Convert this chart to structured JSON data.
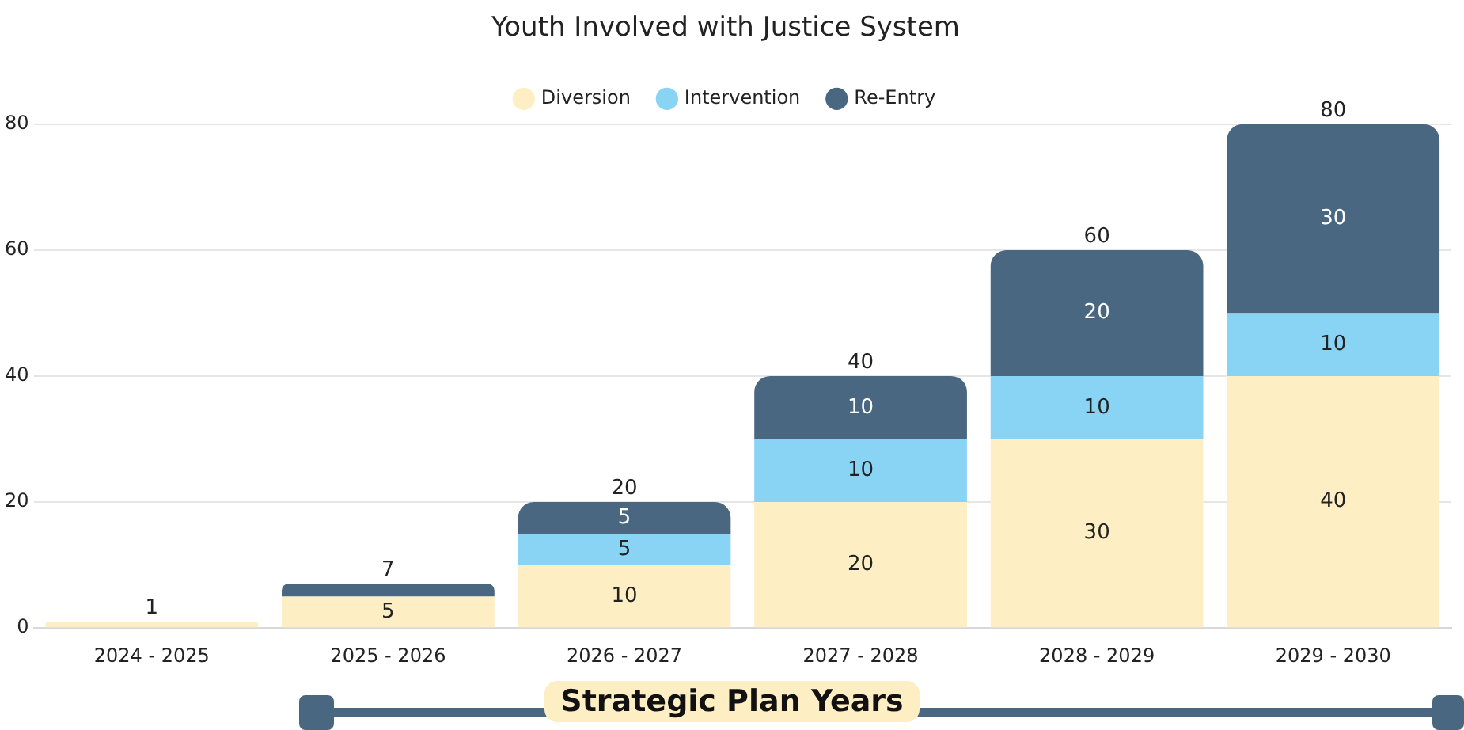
{
  "chart_data": {
    "type": "bar",
    "title": "Youth Involved with Justice System",
    "xlabel": "Strategic Plan Years",
    "categories": [
      "2024 - 2025",
      "2025 - 2026",
      "2026 - 2027",
      "2027 - 2028",
      "2028 - 2029",
      "2029 - 2030"
    ],
    "series": [
      {
        "name": "Diversion",
        "color": "#fdeec3",
        "values": [
          1,
          5,
          10,
          20,
          30,
          40
        ],
        "value_labels": [
          null,
          "5",
          "10",
          "20",
          "30",
          "40"
        ]
      },
      {
        "name": "Intervention",
        "color": "#89d4f5",
        "values": [
          0,
          0,
          5,
          10,
          10,
          10
        ],
        "value_labels": [
          null,
          null,
          "5",
          "10",
          "10",
          "10"
        ]
      },
      {
        "name": "Re-Entry",
        "color": "#4a6782",
        "values": [
          0,
          2,
          5,
          10,
          20,
          30
        ],
        "value_labels": [
          null,
          null,
          "5",
          "10",
          "20",
          "30"
        ]
      }
    ],
    "stacked": true,
    "totals": [
      "1",
      "7",
      "20",
      "40",
      "60",
      "80"
    ],
    "ylim": [
      0,
      80
    ],
    "yticks": [
      0,
      20,
      40,
      60,
      80
    ],
    "grid": "y",
    "legend": "top"
  }
}
